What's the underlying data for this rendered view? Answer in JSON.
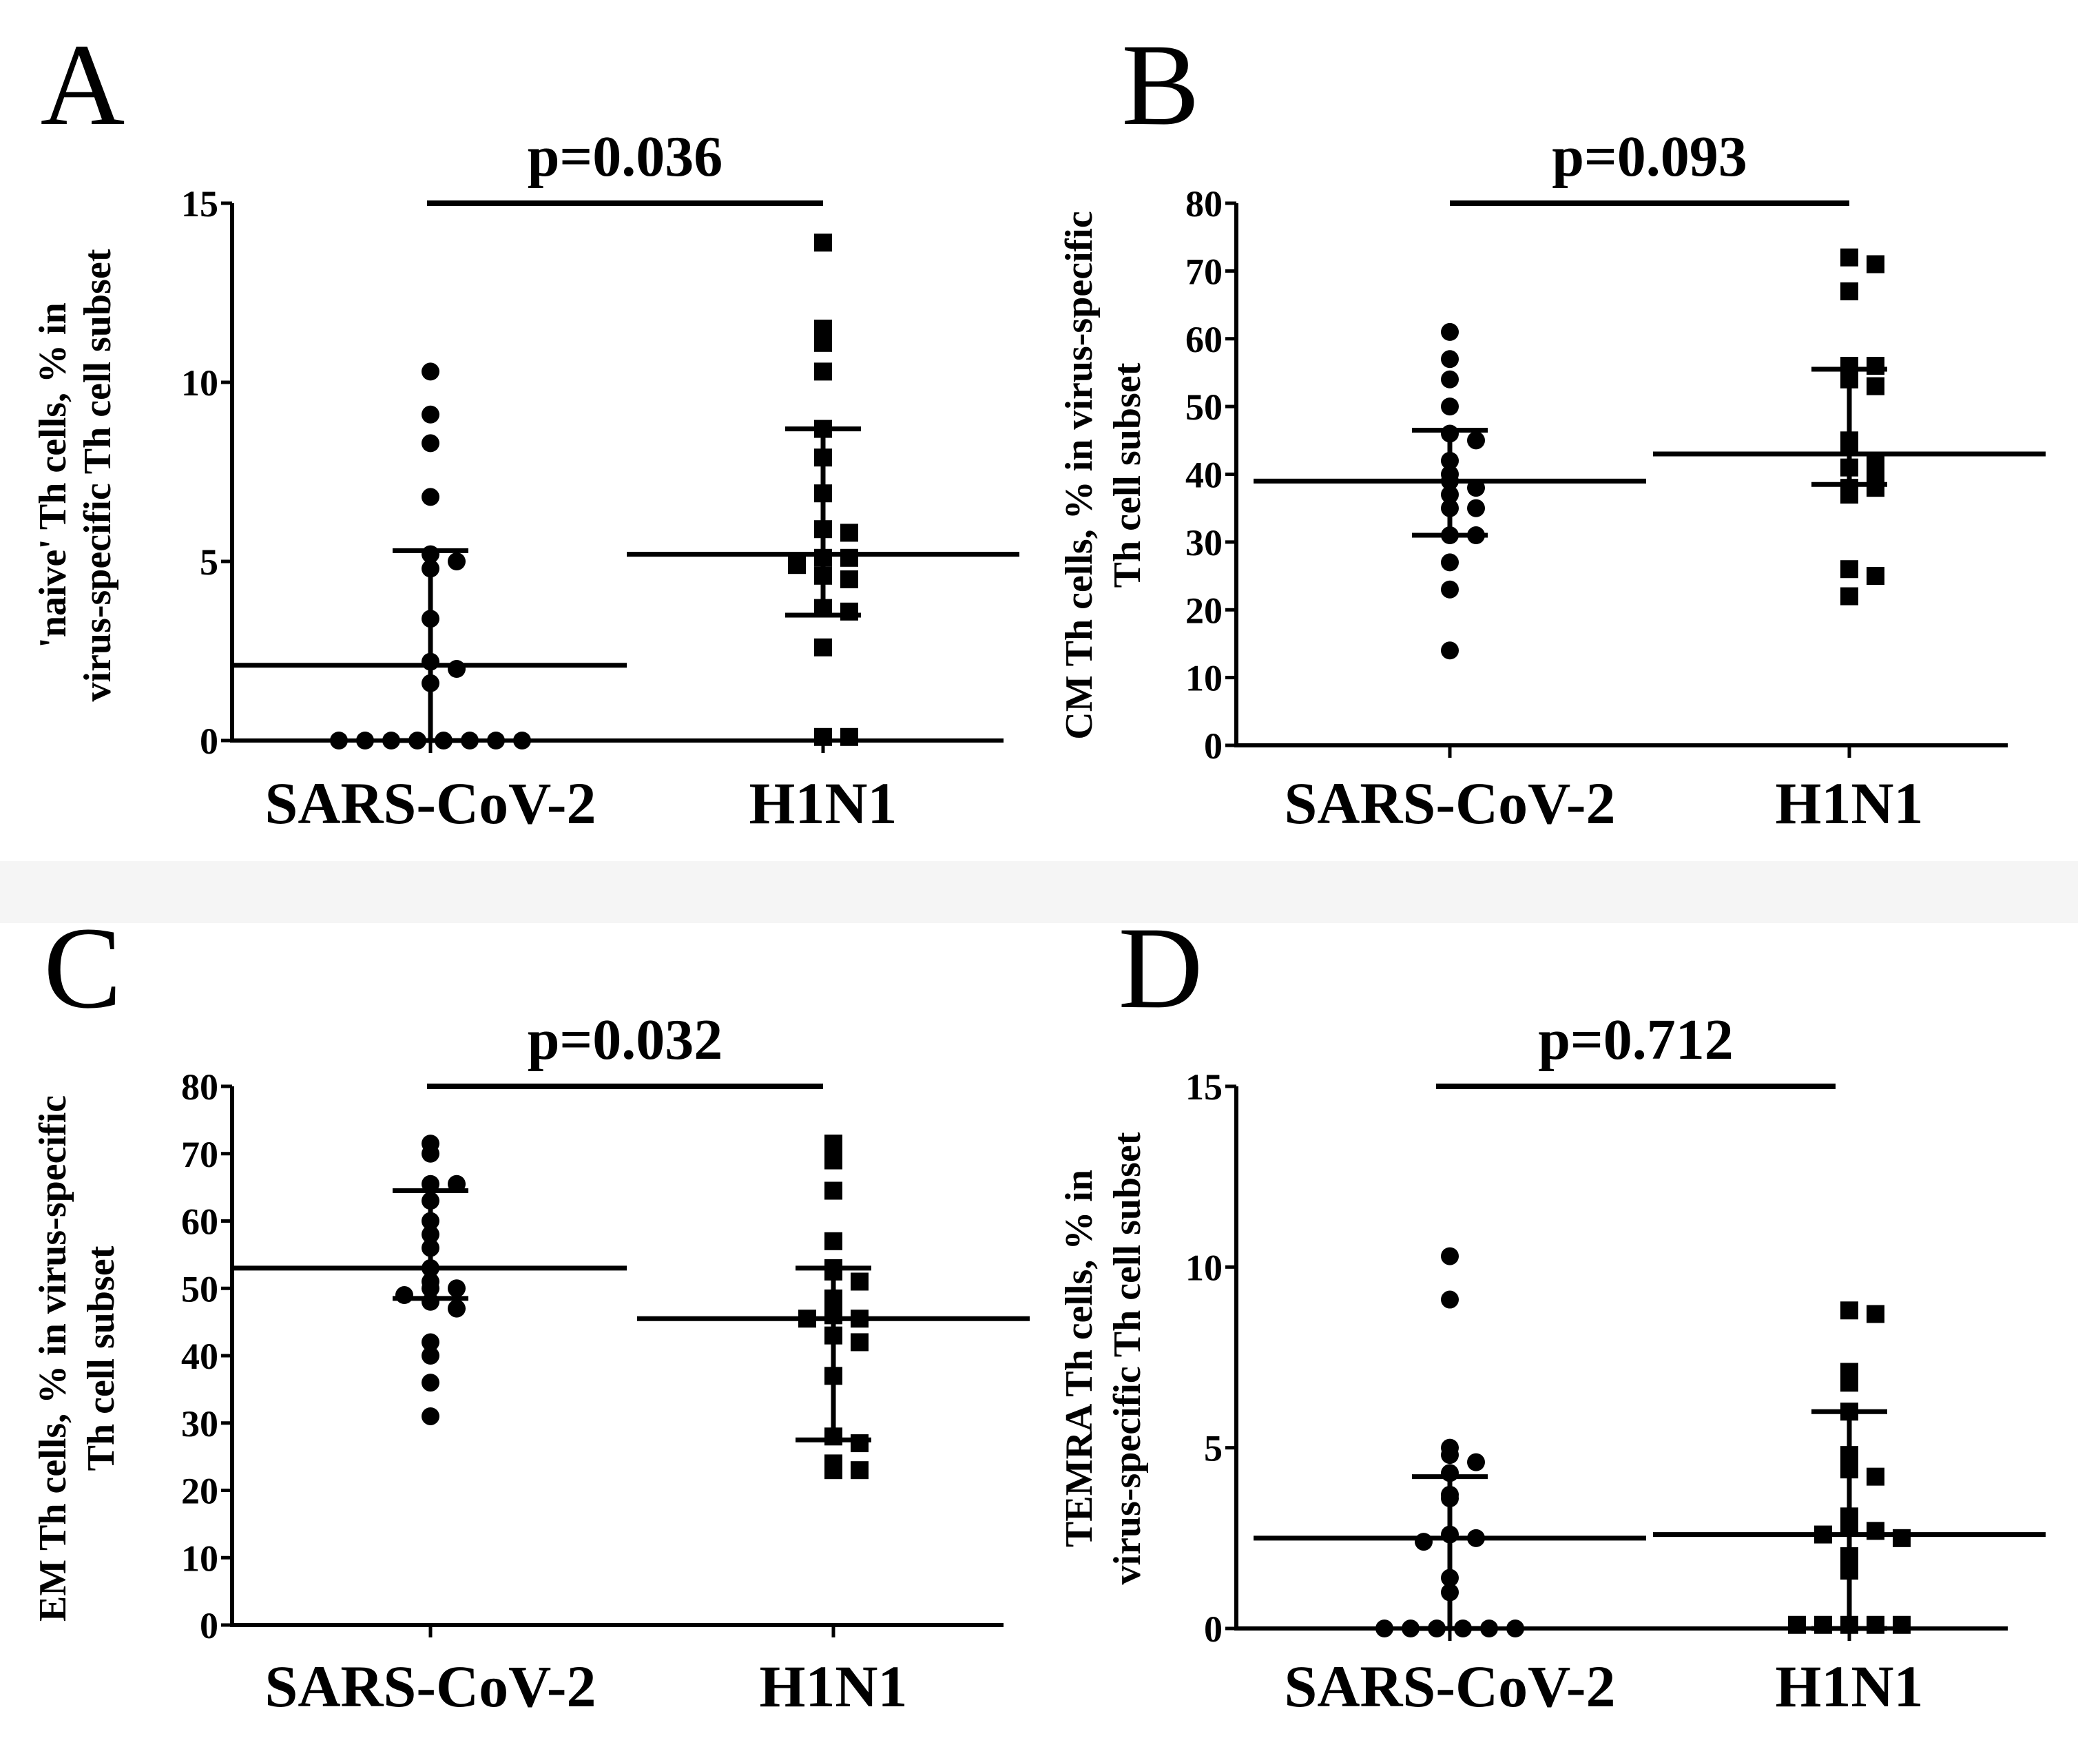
{
  "figure": {
    "background_band_color": "#f5f5f5",
    "mark_color": "#000000"
  },
  "chart_data": [
    {
      "type": "scatter",
      "panel": "A",
      "pvalue": "p=0.036",
      "ylabel_lines": [
        "'naive' Th cells, % in",
        "virus-specific Th cell subset"
      ],
      "categories": [
        "SARS-CoV-2",
        "H1N1"
      ],
      "yticks": [
        "0",
        "5",
        "10",
        "15"
      ],
      "ylim": [
        0,
        15
      ],
      "series": [
        {
          "name": "SARS-CoV-2",
          "marker": "circle",
          "values": [
            10.3,
            9.1,
            8.3,
            6.8,
            5.2,
            5.0,
            4.8,
            3.4,
            2.2,
            2.0,
            1.6,
            0,
            0,
            0,
            0,
            0,
            0,
            0,
            0
          ],
          "median": 2.1,
          "q1": 0,
          "q3": 5.3
        },
        {
          "name": "H1N1",
          "marker": "square",
          "values": [
            13.9,
            11.5,
            11.1,
            10.3,
            8.7,
            7.9,
            6.9,
            5.9,
            5.8,
            5.1,
            5.1,
            4.9,
            4.6,
            4.5,
            3.7,
            3.6,
            2.6,
            0.1,
            0.1
          ],
          "median": 5.2,
          "q1": 3.5,
          "q3": 8.7
        }
      ]
    },
    {
      "type": "scatter",
      "panel": "B",
      "pvalue": "p=0.093",
      "ylabel_lines": [
        "CM Th cells, % in virus-specific",
        "Th cell subset"
      ],
      "categories": [
        "SARS-CoV-2",
        "H1N1"
      ],
      "yticks": [
        "0",
        "10",
        "20",
        "30",
        "40",
        "50",
        "60",
        "70",
        "80"
      ],
      "ylim": [
        0,
        80
      ],
      "series": [
        {
          "name": "SARS-CoV-2",
          "marker": "circle",
          "values": [
            61,
            57,
            54,
            50,
            46,
            45,
            42,
            40,
            39,
            38,
            37,
            35,
            35,
            31,
            31,
            27,
            23,
            14
          ],
          "median": 39,
          "q1": 31,
          "q3": 46.5
        },
        {
          "name": "H1N1",
          "marker": "square",
          "values": [
            72,
            71,
            67,
            56,
            56,
            54,
            53,
            45,
            44,
            42,
            41,
            40,
            38,
            38,
            37,
            26,
            25,
            22
          ],
          "median": 43,
          "q1": 38.5,
          "q3": 55.5
        }
      ]
    },
    {
      "type": "scatter",
      "panel": "C",
      "pvalue": "p=0.032",
      "ylabel_lines": [
        "EM Th cells, % in virus-specific",
        "Th cell subset"
      ],
      "categories": [
        "SARS-CoV-2",
        "H1N1"
      ],
      "yticks": [
        "0",
        "10",
        "20",
        "30",
        "40",
        "50",
        "60",
        "70",
        "80"
      ],
      "ylim": [
        0,
        80
      ],
      "series": [
        {
          "name": "SARS-CoV-2",
          "marker": "circle",
          "values": [
            71.5,
            70,
            65.5,
            65.5,
            63,
            60,
            58,
            56,
            53,
            51,
            50,
            50,
            49,
            48,
            47,
            42,
            40,
            36,
            31
          ],
          "median": 53,
          "q1": 48.5,
          "q3": 64.5
        },
        {
          "name": "H1N1",
          "marker": "square",
          "values": [
            71.5,
            69,
            64.5,
            57,
            53,
            52.5,
            51,
            48.5,
            47.5,
            46,
            45.5,
            45.5,
            43,
            42,
            37,
            28,
            27,
            24,
            23,
            23
          ],
          "median": 45.5,
          "q1": 27.5,
          "q3": 53
        }
      ]
    },
    {
      "type": "scatter",
      "panel": "D",
      "pvalue": "p=0.712",
      "ylabel_lines": [
        "TEMRA Th cells, % in",
        "virus-specific Th cell subset"
      ],
      "categories": [
        "SARS-CoV-2",
        "H1N1"
      ],
      "yticks": [
        "0",
        "5",
        "10",
        "15"
      ],
      "ylim": [
        0,
        15
      ],
      "series": [
        {
          "name": "SARS-CoV-2",
          "marker": "circle",
          "values": [
            10.3,
            9.1,
            5.0,
            4.8,
            4.6,
            4.3,
            3.7,
            3.6,
            2.6,
            2.5,
            2.4,
            1.4,
            1.0,
            0,
            0,
            0,
            0,
            0,
            0
          ],
          "median": 2.5,
          "q1": 0,
          "q3": 4.2
        },
        {
          "name": "H1N1",
          "marker": "square",
          "values": [
            8.8,
            8.7,
            7.1,
            6.8,
            6.0,
            4.8,
            4.4,
            4.2,
            3.1,
            2.8,
            2.7,
            2.6,
            2.5,
            2.0,
            1.6,
            0.1,
            0.1,
            0.1,
            0.1,
            0.1
          ],
          "median": 2.6,
          "q1": 0,
          "q3": 6.0
        }
      ]
    }
  ]
}
